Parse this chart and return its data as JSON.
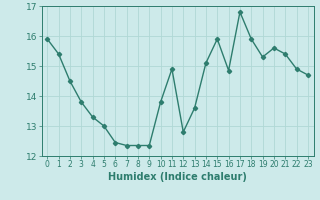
{
  "x": [
    0,
    1,
    2,
    3,
    4,
    5,
    6,
    7,
    8,
    9,
    10,
    11,
    12,
    13,
    14,
    15,
    16,
    17,
    18,
    19,
    20,
    21,
    22,
    23
  ],
  "y": [
    15.9,
    15.4,
    14.5,
    13.8,
    13.3,
    13.0,
    12.45,
    12.35,
    12.35,
    12.35,
    13.8,
    14.9,
    12.8,
    13.6,
    15.1,
    15.9,
    14.85,
    16.8,
    15.9,
    15.3,
    15.6,
    15.4,
    14.9,
    14.7
  ],
  "line_color": "#2e7d6e",
  "marker": "D",
  "marker_size": 2.2,
  "line_width": 1.0,
  "bg_color": "#cdeaea",
  "grid_color": "#b0d8d5",
  "xlabel": "Humidex (Indice chaleur)",
  "ylim": [
    12,
    17
  ],
  "xlim": [
    -0.5,
    23.5
  ],
  "yticks": [
    12,
    13,
    14,
    15,
    16,
    17
  ],
  "xticks": [
    0,
    1,
    2,
    3,
    4,
    5,
    6,
    7,
    8,
    9,
    10,
    11,
    12,
    13,
    14,
    15,
    16,
    17,
    18,
    19,
    20,
    21,
    22,
    23
  ],
  "xtick_labels": [
    "0",
    "1",
    "2",
    "3",
    "4",
    "5",
    "6",
    "7",
    "8",
    "9",
    "10",
    "11",
    "12",
    "13",
    "14",
    "15",
    "16",
    "17",
    "18",
    "19",
    "20",
    "21",
    "22",
    "23"
  ],
  "tick_color": "#2e7d6e",
  "axis_color": "#2e7d6e",
  "xlabel_color": "#2e7d6e",
  "tick_fontsize": 5.5,
  "xlabel_fontsize": 7.0,
  "ytick_fontsize": 6.5
}
